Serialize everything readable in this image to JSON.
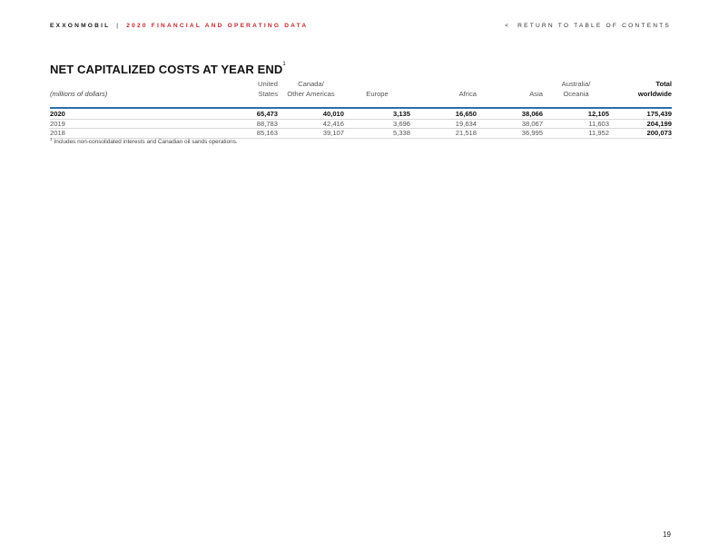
{
  "header": {
    "brand": "EXXONMOBIL",
    "separator": "|",
    "doc_title": "2020 FINANCIAL AND OPERATING DATA",
    "toc_arrow": "<",
    "toc_link": "RETURN TO TABLE OF CONTENTS"
  },
  "title": "NET CAPITALIZED COSTS AT YEAR END",
  "title_footnote_marker": "1",
  "table": {
    "unit_label": "(millions of dollars)",
    "columns": [
      {
        "line1": "United",
        "line2": "States"
      },
      {
        "line1": "Canada/",
        "line2": "Other Americas"
      },
      {
        "line1": "",
        "line2": "Europe"
      },
      {
        "line1": "",
        "line2": "Africa"
      },
      {
        "line1": "",
        "line2": "Asia"
      },
      {
        "line1": "Australia/",
        "line2": "Oceania"
      },
      {
        "line1": "Total",
        "line2": "worldwide"
      }
    ],
    "rows": [
      {
        "year": "2020",
        "values": [
          "65,473",
          "40,010",
          "3,135",
          "16,650",
          "38,066",
          "12,105",
          "175,439"
        ]
      },
      {
        "year": "2019",
        "values": [
          "88,783",
          "42,416",
          "3,696",
          "19,634",
          "38,067",
          "11,603",
          "204,199"
        ]
      },
      {
        "year": "2018",
        "values": [
          "85,163",
          "39,107",
          "5,338",
          "21,518",
          "36,995",
          "11,952",
          "200,073"
        ]
      }
    ]
  },
  "footnote": {
    "marker": "1",
    "text": "Includes non-consolidated interests and Canadian oil sands operations."
  },
  "page_number": "19"
}
